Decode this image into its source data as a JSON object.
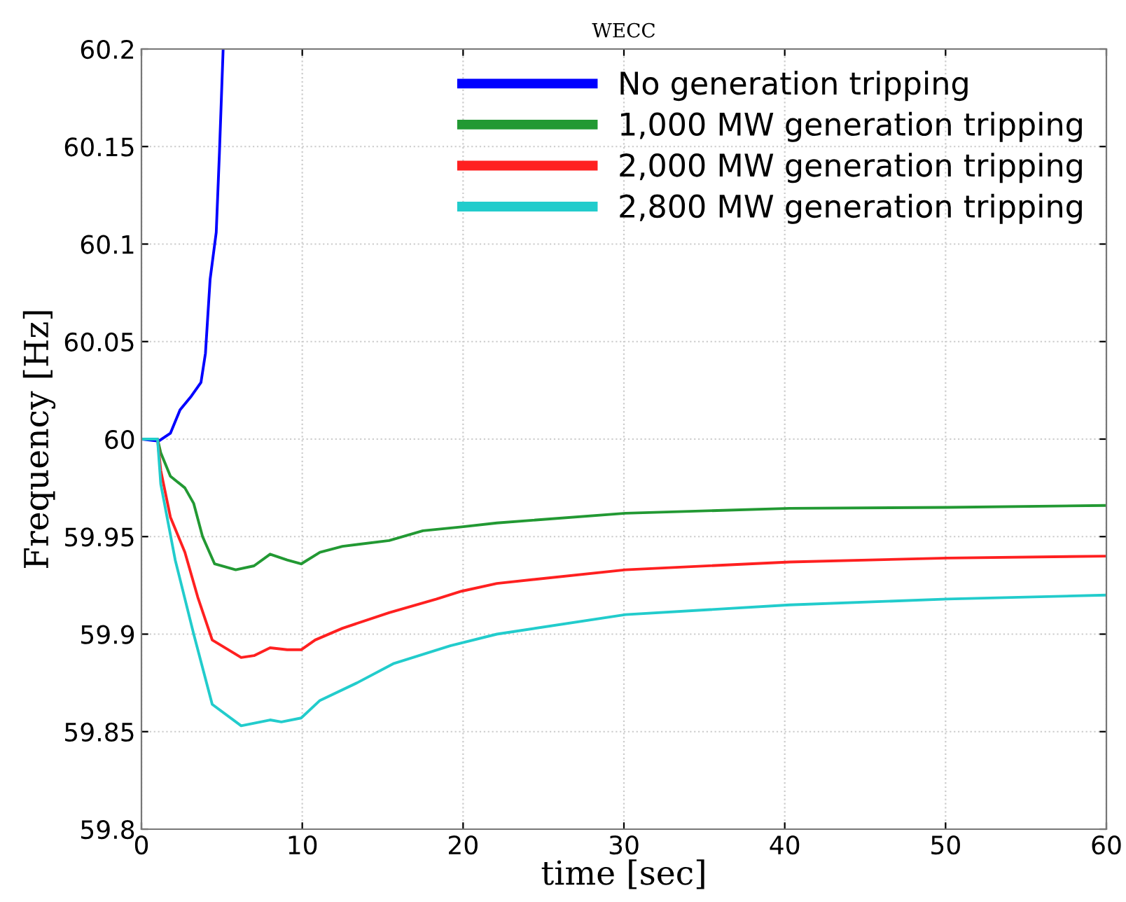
{
  "chart_data": {
    "type": "line",
    "title": "WECC",
    "xlabel": "time [sec]",
    "ylabel": "Frequency [Hz]",
    "xlim": [
      0,
      60
    ],
    "ylim": [
      59.8,
      60.2
    ],
    "xticks": [
      0,
      10,
      20,
      30,
      40,
      50,
      60
    ],
    "yticks": [
      59.8,
      59.85,
      59.9,
      59.95,
      60,
      60.05,
      60.1,
      60.15,
      60.2
    ],
    "grid": true,
    "legend": "top right",
    "line_style": "solid",
    "marker": "none",
    "series": [
      {
        "name": "No generation tripping",
        "color": "#0000ff",
        "x": [
          0,
          1.07,
          1.8,
          2.4,
          3.1,
          3.7,
          3.98,
          4.27,
          4.65,
          4.85,
          5.08
        ],
        "values": [
          60,
          59.999,
          60.003,
          60.015,
          60.022,
          60.029,
          60.044,
          60.082,
          60.106,
          60.147,
          60.2
        ]
      },
      {
        "name": "1,000 MW generation tripping",
        "color": "#229933",
        "x": [
          0,
          1.0,
          1.2,
          1.8,
          2.7,
          3.25,
          3.8,
          4.55,
          5.86,
          7.0,
          8.0,
          9.06,
          9.93,
          11.1,
          12.5,
          15.4,
          17.5,
          19.9,
          22.1,
          30.1,
          40.3,
          50.1,
          60
        ],
        "values": [
          60,
          60,
          59.993,
          59.981,
          59.975,
          59.967,
          59.95,
          59.936,
          59.933,
          59.935,
          59.941,
          59.938,
          59.936,
          59.942,
          59.945,
          59.948,
          59.953,
          59.955,
          59.957,
          59.962,
          59.9645,
          59.965,
          59.966
        ]
      },
      {
        "name": "2,000 MW generation tripping",
        "color": "#ff2020",
        "x": [
          0,
          1.0,
          1.2,
          1.8,
          2.7,
          3.5,
          4.4,
          6.2,
          7.0,
          8.0,
          9.06,
          9.93,
          10.8,
          12.5,
          15.4,
          18.35,
          19.9,
          22.1,
          30.1,
          40.3,
          50.1,
          60
        ],
        "values": [
          60,
          60,
          59.984,
          59.96,
          59.942,
          59.919,
          59.897,
          59.888,
          59.889,
          59.893,
          59.892,
          59.892,
          59.897,
          59.903,
          59.911,
          59.918,
          59.922,
          59.926,
          59.933,
          59.937,
          59.939,
          59.94
        ]
      },
      {
        "name": "2,800 MW generation tripping",
        "color": "#22cccc",
        "x": [
          0,
          1.0,
          1.2,
          2.1,
          3.25,
          4.4,
          6.2,
          8.0,
          8.7,
          9.93,
          11.1,
          13.4,
          15.7,
          19.2,
          22.1,
          30.1,
          40.3,
          50.1,
          60
        ],
        "values": [
          60,
          60,
          59.977,
          59.938,
          59.9,
          59.864,
          59.853,
          59.856,
          59.855,
          59.857,
          59.866,
          59.875,
          59.885,
          59.894,
          59.9,
          59.91,
          59.915,
          59.918,
          59.92
        ]
      }
    ]
  }
}
